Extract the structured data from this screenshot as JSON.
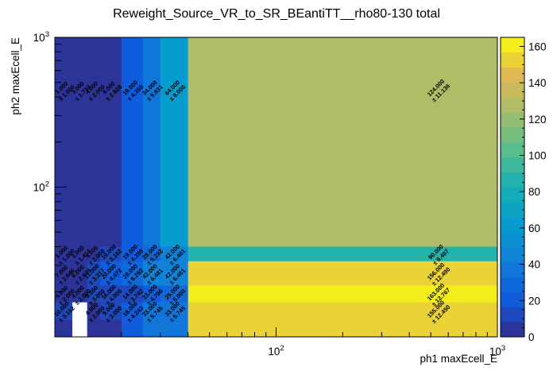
{
  "chart_data": {
    "type": "heatmap",
    "title": "Reweight_Source_VR_to_SR_BEantiTT__rho80-130 total",
    "xlabel": "ph1 maxEcell_E",
    "ylabel": "ph2 maxEcell_E",
    "x_scale": "log",
    "y_scale": "log",
    "xlim": [
      10,
      1000
    ],
    "ylim": [
      10,
      1000
    ],
    "x_ticks": [
      {
        "v": 100,
        "base": "10",
        "exp": "2"
      },
      {
        "v": 1000,
        "base": "10",
        "exp": "3"
      }
    ],
    "y_ticks": [
      {
        "v": 100,
        "base": "10",
        "exp": "2"
      },
      {
        "v": 1000,
        "base": "10",
        "exp": "3"
      }
    ],
    "x_edges": [
      10,
      12,
      14,
      16,
      20,
      25,
      30,
      40,
      1000
    ],
    "y_edges": [
      10,
      13,
      17,
      22,
      32,
      40,
      1000
    ],
    "z_range": [
      0,
      165
    ],
    "palette": "kBird",
    "colorbar_ticks": [
      0,
      20,
      40,
      60,
      80,
      100,
      120,
      140,
      160
    ],
    "cells": [
      {
        "ix": 0,
        "iy": 5,
        "value": 1.0,
        "label": "1.000",
        "error": "± 1.000"
      },
      {
        "ix": 1,
        "iy": 5,
        "value": 3.0,
        "label": "3.000",
        "error": "± 1.732"
      },
      {
        "ix": 2,
        "iy": 5,
        "value": 4.0,
        "label": "4.000",
        "error": "± 2.000"
      },
      {
        "ix": 3,
        "iy": 5,
        "value": 8.0,
        "label": "8.000",
        "error": "± 2.828"
      },
      {
        "ix": 4,
        "iy": 5,
        "value": 19.0,
        "label": "19.000",
        "error": "± 4.359"
      },
      {
        "ix": 5,
        "iy": 5,
        "value": 34.0,
        "label": "34.000",
        "error": "± 5.831"
      },
      {
        "ix": 6,
        "iy": 5,
        "value": 64.0,
        "label": "64.000",
        "error": "± 8.000"
      },
      {
        "ix": 7,
        "iy": 5,
        "value": 124.0,
        "label": "124.000",
        "error": "± 11.136"
      },
      {
        "ix": 0,
        "iy": 4,
        "value": 1.0,
        "label": "1.000",
        "error": "± 1.000"
      },
      {
        "ix": 1,
        "iy": 4,
        "value": 2.0,
        "label": "2.000",
        "error": "± 1.414"
      },
      {
        "ix": 2,
        "iy": 4,
        "value": 4.0,
        "label": "4.000",
        "error": "± 2.000"
      },
      {
        "ix": 3,
        "iy": 4,
        "value": 10.0,
        "label": "10.000",
        "error": "± 3.162"
      },
      {
        "ix": 4,
        "iy": 4,
        "value": 19.0,
        "label": "19.000",
        "error": "± 4.359"
      },
      {
        "ix": 5,
        "iy": 4,
        "value": 28.0,
        "label": "28.000",
        "error": "± 5.292"
      },
      {
        "ix": 6,
        "iy": 4,
        "value": 42.0,
        "label": "42.000",
        "error": "± 6.481"
      },
      {
        "ix": 7,
        "iy": 4,
        "value": 90.0,
        "label": "90.000",
        "error": "± 9.487"
      },
      {
        "ix": 0,
        "iy": 3,
        "value": 7.0,
        "label": "7.000",
        "error": "± 2.646"
      },
      {
        "ix": 1,
        "iy": 3,
        "value": 6.0,
        "label": "6.000",
        "error": "± 2.449"
      },
      {
        "ix": 2,
        "iy": 3,
        "value": 11.0,
        "label": "11.000",
        "error": "± 3.317"
      },
      {
        "ix": 3,
        "iy": 3,
        "value": 20.0,
        "label": "20.000",
        "error": "± 4.472"
      },
      {
        "ix": 4,
        "iy": 3,
        "value": 28.0,
        "label": "28.000",
        "error": "± 5.292"
      },
      {
        "ix": 5,
        "iy": 3,
        "value": 42.0,
        "label": "42.000",
        "error": "± 6.481"
      },
      {
        "ix": 6,
        "iy": 3,
        "value": 42.0,
        "label": "42.000",
        "error": "± 6.481"
      },
      {
        "ix": 7,
        "iy": 3,
        "value": 156.0,
        "label": "156.000",
        "error": "± 12.490"
      },
      {
        "ix": 0,
        "iy": 2,
        "value": 4.0,
        "label": "4.000",
        "error": "± 2.000"
      },
      {
        "ix": 1,
        "iy": 2,
        "value": 4.0,
        "label": "4.000",
        "error": "± 2.000"
      },
      {
        "ix": 2,
        "iy": 2,
        "value": 9.0,
        "label": "9.000",
        "error": "± 3.000"
      },
      {
        "ix": 3,
        "iy": 2,
        "value": 16.0,
        "label": "16.000",
        "error": "± 4.000"
      },
      {
        "ix": 4,
        "iy": 2,
        "value": 14.0,
        "label": "14.000",
        "error": "± 3.742"
      },
      {
        "ix": 5,
        "iy": 2,
        "value": 23.0,
        "label": "23.000",
        "error": "± 4.796"
      },
      {
        "ix": 6,
        "iy": 2,
        "value": 25.0,
        "label": "25.000",
        "error": "± 5.000"
      },
      {
        "ix": 7,
        "iy": 2,
        "value": 163.0,
        "label": "163.000",
        "error": "± 12.767"
      },
      {
        "ix": 0,
        "iy": 1,
        "value": 10.0,
        "label": "10.000",
        "error": "± 3.162"
      },
      {
        "ix": 1,
        "iy": 1,
        "value": 0.0,
        "label": "",
        "error": ""
      },
      {
        "ix": 2,
        "iy": 1,
        "value": 4.0,
        "label": "4.000",
        "error": "± 2.000"
      },
      {
        "ix": 3,
        "iy": 1,
        "value": 9.0,
        "label": "9.000",
        "error": "± 3.000"
      },
      {
        "ix": 4,
        "iy": 1,
        "value": 18.0,
        "label": "18.000",
        "error": "± 4.243"
      },
      {
        "ix": 5,
        "iy": 1,
        "value": 33.0,
        "label": "33.000",
        "error": "± 5.745"
      },
      {
        "ix": 6,
        "iy": 1,
        "value": 33.0,
        "label": "33.000",
        "error": "± 5.745"
      },
      {
        "ix": 7,
        "iy": 1,
        "value": 155.0,
        "label": "155.000",
        "error": "± 12.450"
      },
      {
        "ix": 0,
        "iy": 0,
        "value": 1.0,
        "label": "",
        "error": ""
      },
      {
        "ix": 1,
        "iy": 0,
        "value": 0.0,
        "label": "",
        "error": ""
      },
      {
        "ix": 2,
        "iy": 0,
        "value": 4.0,
        "label": "",
        "error": ""
      },
      {
        "ix": 3,
        "iy": 0,
        "value": 8.0,
        "label": "",
        "error": ""
      },
      {
        "ix": 4,
        "iy": 0,
        "value": 18.0,
        "label": "",
        "error": ""
      },
      {
        "ix": 5,
        "iy": 0,
        "value": 33.0,
        "label": "",
        "error": ""
      },
      {
        "ix": 6,
        "iy": 0,
        "value": 33.0,
        "label": "",
        "error": ""
      },
      {
        "ix": 7,
        "iy": 0,
        "value": 155.0,
        "label": "",
        "error": ""
      }
    ]
  }
}
